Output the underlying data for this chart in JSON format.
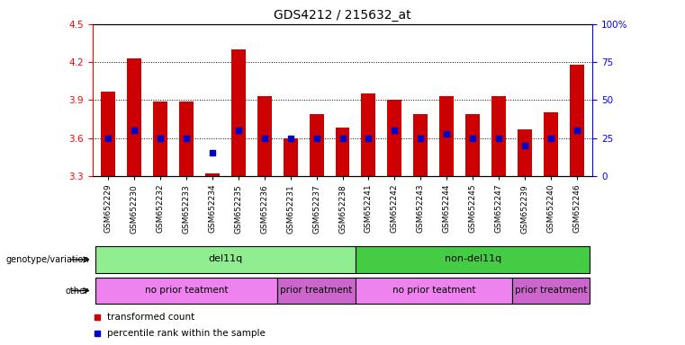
{
  "title": "GDS4212 / 215632_at",
  "samples": [
    "GSM652229",
    "GSM652230",
    "GSM652232",
    "GSM652233",
    "GSM652234",
    "GSM652235",
    "GSM652236",
    "GSM652231",
    "GSM652237",
    "GSM652238",
    "GSM652241",
    "GSM652242",
    "GSM652243",
    "GSM652244",
    "GSM652245",
    "GSM652247",
    "GSM652239",
    "GSM652240",
    "GSM652246"
  ],
  "transformed_count": [
    3.97,
    4.23,
    3.89,
    3.89,
    3.32,
    4.3,
    3.93,
    3.6,
    3.79,
    3.68,
    3.95,
    3.9,
    3.79,
    3.93,
    3.79,
    3.93,
    3.67,
    3.8,
    4.18
  ],
  "percentile_rank": [
    25,
    30,
    25,
    25,
    15,
    30,
    25,
    25,
    25,
    25,
    25,
    30,
    25,
    28,
    25,
    25,
    20,
    25,
    30
  ],
  "ylim": [
    3.3,
    4.5
  ],
  "ylim_right": [
    0,
    100
  ],
  "yticks_left": [
    3.3,
    3.6,
    3.9,
    4.2,
    4.5
  ],
  "yticks_right": [
    0,
    25,
    50,
    75,
    100
  ],
  "ytick_labels_right": [
    "0",
    "25",
    "50",
    "75",
    "100%"
  ],
  "bar_color": "#cc0000",
  "dot_color": "#0000cc",
  "bar_bottom": 3.3,
  "grid_lines": [
    3.6,
    3.9,
    4.2
  ],
  "genotype_groups": [
    {
      "label": "del11q",
      "start": 0,
      "end": 10,
      "color": "#90ee90"
    },
    {
      "label": "non-del11q",
      "start": 10,
      "end": 19,
      "color": "#44cc44"
    }
  ],
  "other_groups": [
    {
      "label": "no prior teatment",
      "start": 0,
      "end": 7,
      "color": "#ee82ee"
    },
    {
      "label": "prior treatment",
      "start": 7,
      "end": 10,
      "color": "#cc66cc"
    },
    {
      "label": "no prior teatment",
      "start": 10,
      "end": 16,
      "color": "#ee82ee"
    },
    {
      "label": "prior treatment",
      "start": 16,
      "end": 19,
      "color": "#cc66cc"
    }
  ],
  "legend_items": [
    {
      "label": "transformed count",
      "color": "#cc0000"
    },
    {
      "label": "percentile rank within the sample",
      "color": "#0000cc"
    }
  ],
  "left_labels": [
    "genotype/variation",
    "other"
  ],
  "bar_width": 0.55
}
